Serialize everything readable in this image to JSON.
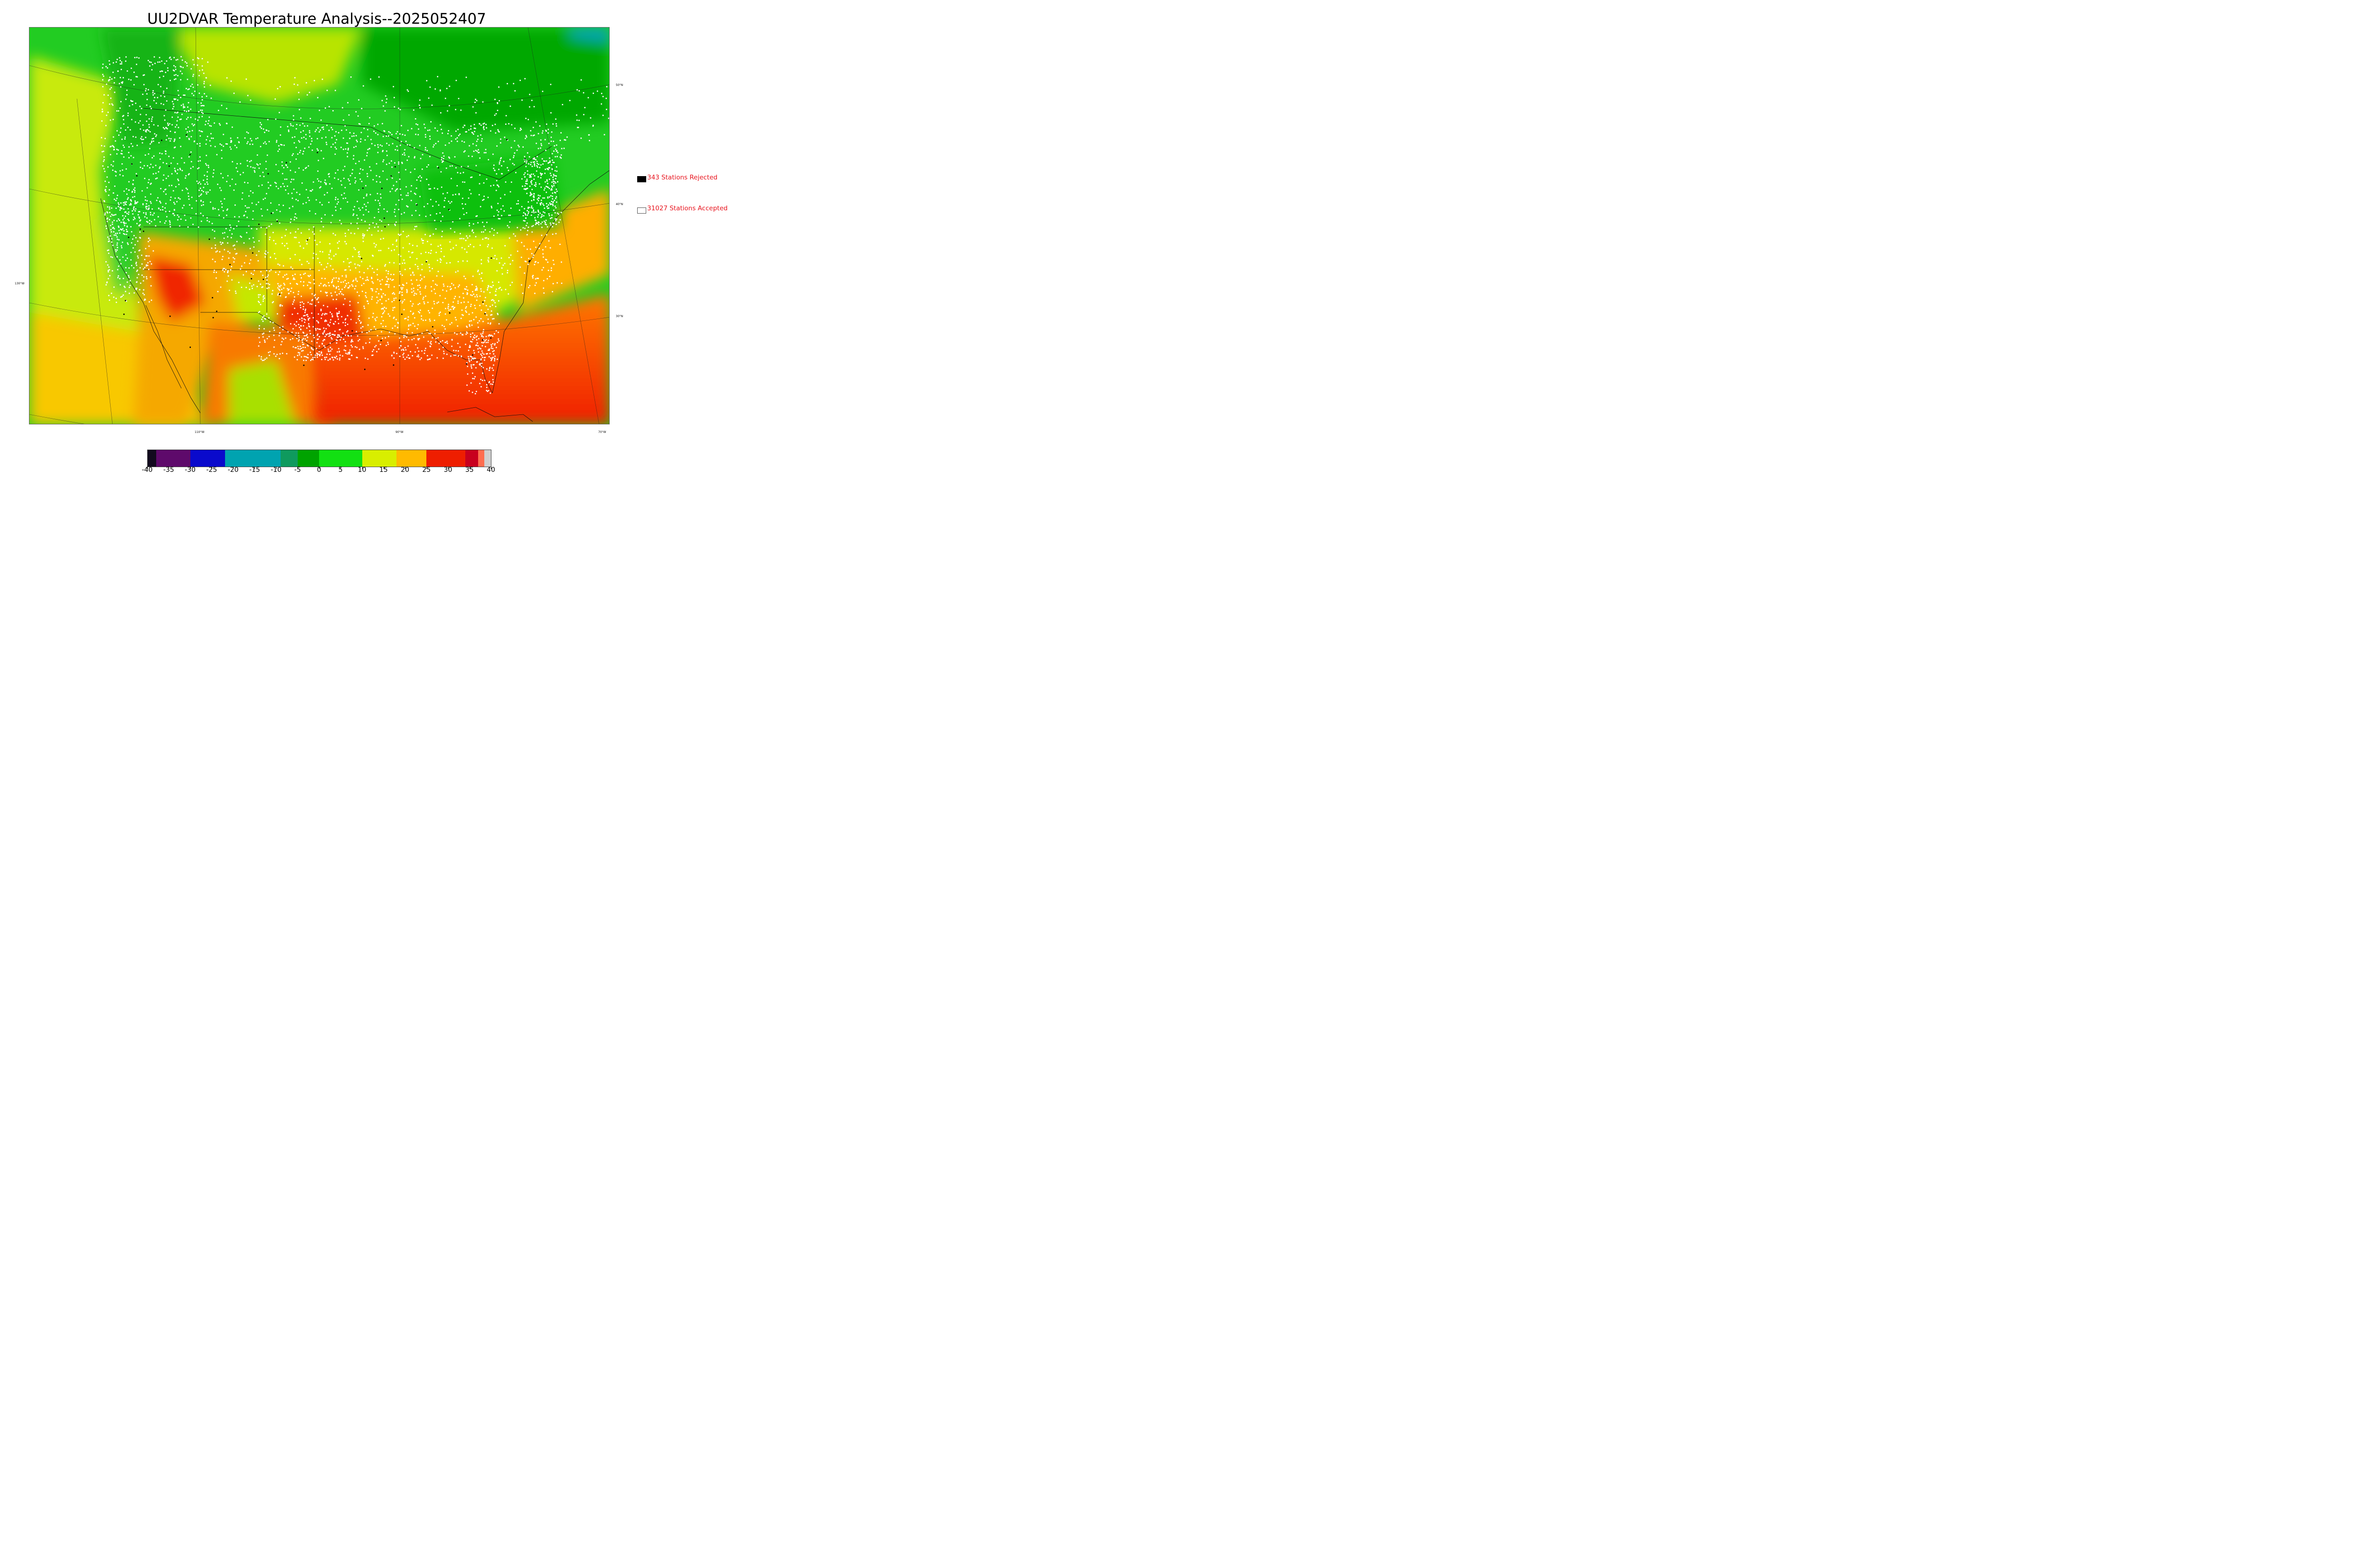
{
  "title": "UU2DVAR Temperature Analysis--2025052407",
  "legend": {
    "rejected": {
      "label": "343 Stations Rejected",
      "swatch_color": "#000000"
    },
    "accepted": {
      "label": "31027 Stations Accepted",
      "swatch_color": "#ffffff"
    }
  },
  "map": {
    "lat_labels": [
      "50°N",
      "40°N",
      "30°N"
    ],
    "lon_labels": [
      "130°W",
      "110°W",
      "90°W",
      "70°W"
    ]
  },
  "colorbar": {
    "min": -40,
    "max": 40,
    "unit": "",
    "ticks": [
      "-40",
      "-35",
      "-30",
      "-25",
      "-20",
      "-15",
      "-10",
      "-5",
      "0",
      "5",
      "10",
      "15",
      "20",
      "25",
      "30",
      "35",
      "40"
    ],
    "bands": [
      {
        "from": -40,
        "to": -38,
        "color": "#120a1e"
      },
      {
        "from": -38,
        "to": -30,
        "color": "#5e0a6b"
      },
      {
        "from": -30,
        "to": -22,
        "color": "#0a0acc"
      },
      {
        "from": -22,
        "to": -9,
        "color": "#00a3b0"
      },
      {
        "from": -9,
        "to": -5,
        "color": "#0f9a5e"
      },
      {
        "from": -5,
        "to": 0,
        "color": "#00a300"
      },
      {
        "from": 0,
        "to": 10,
        "color": "#12e012"
      },
      {
        "from": 10,
        "to": 18,
        "color": "#d8ee00"
      },
      {
        "from": 18,
        "to": 25,
        "color": "#ffba00"
      },
      {
        "from": 25,
        "to": 34,
        "color": "#ee1e00"
      },
      {
        "from": 34,
        "to": 37,
        "color": "#c8001e"
      },
      {
        "from": 37,
        "to": 38.5,
        "color": "#ff6e50"
      },
      {
        "from": 38.5,
        "to": 40,
        "color": "#d0d0d0"
      }
    ]
  }
}
